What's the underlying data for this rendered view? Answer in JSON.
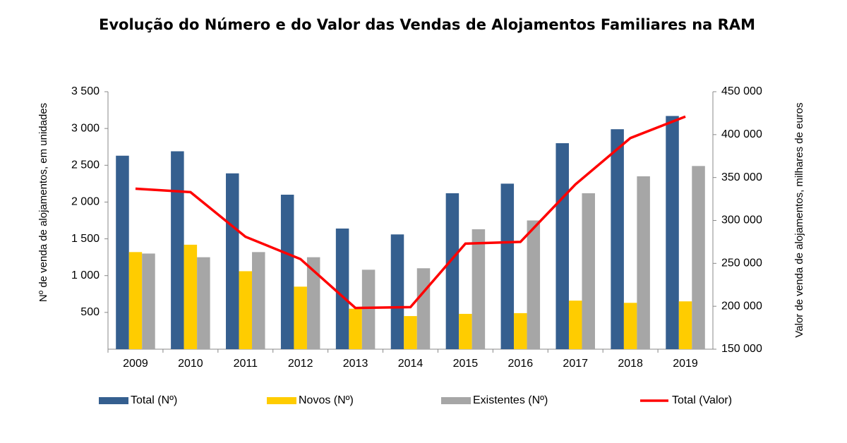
{
  "chart_data": {
    "type": "bar_line",
    "title": "Evolução do Número e do Valor das Vendas de Alojamentos Familiares na RAM",
    "y_label": "Nº de venda de alojamentos, em unidades",
    "y2_label": "Valor de venda de alojamentos, milhares de euros",
    "categories": [
      "2009",
      "2010",
      "2011",
      "2012",
      "2013",
      "2014",
      "2015",
      "2016",
      "2017",
      "2018",
      "2019"
    ],
    "series": [
      {
        "name": "Total (Nº)",
        "type": "bar",
        "color": "#355f8f",
        "values": [
          2630,
          2690,
          2390,
          2100,
          1640,
          1560,
          2120,
          2250,
          2800,
          2990,
          3170
        ]
      },
      {
        "name": "Novos (Nº)",
        "type": "bar",
        "color": "#ffcc00",
        "values": [
          1320,
          1420,
          1060,
          850,
          550,
          450,
          480,
          490,
          660,
          630,
          650
        ]
      },
      {
        "name": "Existentes (Nº)",
        "type": "bar",
        "color": "#a6a6a6",
        "values": [
          1300,
          1250,
          1320,
          1250,
          1080,
          1100,
          1630,
          1750,
          2120,
          2350,
          2490
        ]
      },
      {
        "name": "Total (Valor)",
        "type": "line",
        "axis": "y2",
        "color": "#ff0000",
        "values": [
          337000,
          333000,
          281000,
          255000,
          198000,
          199000,
          273000,
          275000,
          342000,
          396000,
          421000
        ]
      }
    ],
    "ylim": [
      0,
      3500
    ],
    "yticks": [
      500,
      {
        "value": 1000,
        "label": "1 000"
      },
      {
        "value": 1500,
        "label": "1 500"
      },
      {
        "value": 2000,
        "label": "2 000"
      },
      {
        "value": 2500,
        "label": "2 500"
      },
      {
        "value": 3000,
        "label": "3 000"
      },
      {
        "value": 3500,
        "label": "3 500"
      }
    ],
    "y2lim": [
      150000,
      450000
    ],
    "y2ticks": [
      {
        "value": 150000,
        "label": "150 000"
      },
      {
        "value": 200000,
        "label": "200 000"
      },
      {
        "value": 250000,
        "label": "250 000"
      },
      {
        "value": 300000,
        "label": "300 000"
      },
      {
        "value": 350000,
        "label": "350 000"
      },
      {
        "value": 400000,
        "label": "400 000"
      },
      {
        "value": 450000,
        "label": "450 000"
      }
    ],
    "grid": false,
    "legend": "bottom"
  }
}
